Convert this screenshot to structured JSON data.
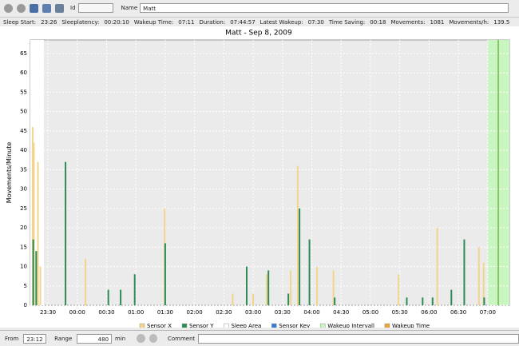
{
  "toolbar": {
    "id_label": "Id",
    "name_label": "Name",
    "name_value": "Matt"
  },
  "stats": [
    {
      "label": "Sleep Start:",
      "value": "23:26"
    },
    {
      "label": "Sleeplatency:",
      "value": "00:20:10"
    },
    {
      "label": "Wakeup Time:",
      "value": "07:11"
    },
    {
      "label": "Duration:",
      "value": "07:44:57"
    },
    {
      "label": "Latest Wakeup:",
      "value": "07:30"
    },
    {
      "label": "Time Saving:",
      "value": "00:18"
    },
    {
      "label": "Movements:",
      "value": "1081"
    },
    {
      "label": "Movements/h:",
      "value": "139.5"
    }
  ],
  "chart_data": {
    "type": "bar",
    "title": "Matt - Sep 8, 2009",
    "y_label": "Movements/Minute",
    "xlim": [
      -0.8,
      7.37
    ],
    "ylim": [
      0,
      68.5
    ],
    "yticks": [
      0,
      5,
      10,
      15,
      20,
      25,
      30,
      35,
      40,
      45,
      50,
      55,
      60,
      65
    ],
    "xticks": [
      {
        "value": -0.5,
        "label": "23:30"
      },
      {
        "value": 0,
        "label": "00:00"
      },
      {
        "value": 0.5,
        "label": "00:30"
      },
      {
        "value": 1,
        "label": "01:00"
      },
      {
        "value": 1.5,
        "label": "01:30"
      },
      {
        "value": 2,
        "label": "02:00"
      },
      {
        "value": 2.5,
        "label": "02:30"
      },
      {
        "value": 3,
        "label": "03:00"
      },
      {
        "value": 3.5,
        "label": "03:30"
      },
      {
        "value": 4,
        "label": "04:00"
      },
      {
        "value": 4.5,
        "label": "04:30"
      },
      {
        "value": 5,
        "label": "05:00"
      },
      {
        "value": 5.5,
        "label": "05:30"
      },
      {
        "value": 6,
        "label": "06:00"
      },
      {
        "value": 6.5,
        "label": "06:30"
      },
      {
        "value": 7,
        "label": "07:00"
      }
    ],
    "grid": true,
    "series": [
      {
        "name": "Sensor X",
        "color": "#f2d58a",
        "x": [
          -0.76,
          -0.74,
          -0.67,
          -0.63,
          -0.2,
          0.14,
          1.49,
          2.65,
          3.0,
          3.23,
          3.64,
          3.76,
          4.09,
          4.37,
          5.48,
          6.14,
          6.85,
          6.93
        ],
        "values": [
          46,
          42,
          37,
          10,
          29,
          12,
          25,
          3,
          3,
          8,
          9,
          36,
          10,
          9,
          8,
          20,
          15,
          11
        ]
      },
      {
        "name": "Sensor Y",
        "color": "#2e8b57",
        "x": [
          -0.75,
          -0.7,
          -0.2,
          0.53,
          0.74,
          0.98,
          1.5,
          2.89,
          3.26,
          3.6,
          3.79,
          3.96,
          4.39,
          5.62,
          5.89,
          6.06,
          6.38,
          6.6,
          6.94
        ],
        "values": [
          17,
          14,
          37,
          4,
          4,
          8,
          16,
          10,
          9,
          3,
          25,
          17,
          2,
          2,
          2,
          2,
          4,
          17,
          2
        ]
      }
    ],
    "sleep_area": {
      "name": "Sleep Area",
      "color": "#ffffff",
      "range": [
        -0.8,
        -0.57
      ]
    },
    "sensor_key": {
      "name": "Sensor Key",
      "color": "#3a7bd5"
    },
    "wakeup_interval": {
      "name": "Wakeup Intervall",
      "color": "#c8f5c0",
      "range": [
        7.0,
        7.37
      ]
    },
    "wakeup_time": {
      "name": "Wakeup Time",
      "color": "#e8a33a",
      "value": 7.18
    }
  },
  "footer": {
    "from_label": "From",
    "from_value": "23:12",
    "range_label": "Range",
    "range_value": "480",
    "range_unit": "min",
    "comment_label": "Comment"
  }
}
